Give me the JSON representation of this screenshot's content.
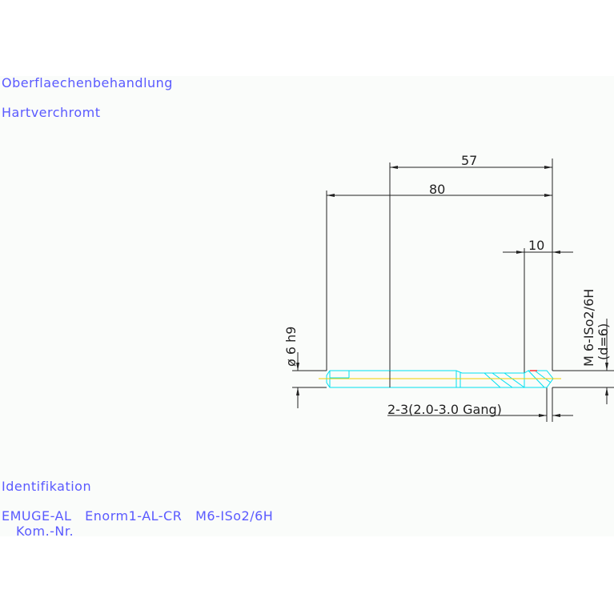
{
  "notes": {
    "surface_label": "Oberflaechenbehandlung",
    "surface_value": "Hartverchromt",
    "ident_label": "Identifikation",
    "ident_value": "EMUGE-AL   Enorm1-AL-CR   M6-ISo2/6H",
    "kom_label": "Kom.-Nr."
  },
  "dimensions": {
    "overall_length": "80",
    "shank_to_tip": "57",
    "thread_length": "10",
    "shank_diameter": "ø 6 h9",
    "thread_spec": "M 6-ISo2/6H",
    "thread_d": "(d=6)",
    "chamfer": "2-3(2.0-3.0 Gang)"
  },
  "colors": {
    "text": "#5a5aff",
    "tool_outline": "#00e0f0",
    "centerline": "#f0d000",
    "dimension": "#222222",
    "tip_mark": "#ff6060"
  }
}
